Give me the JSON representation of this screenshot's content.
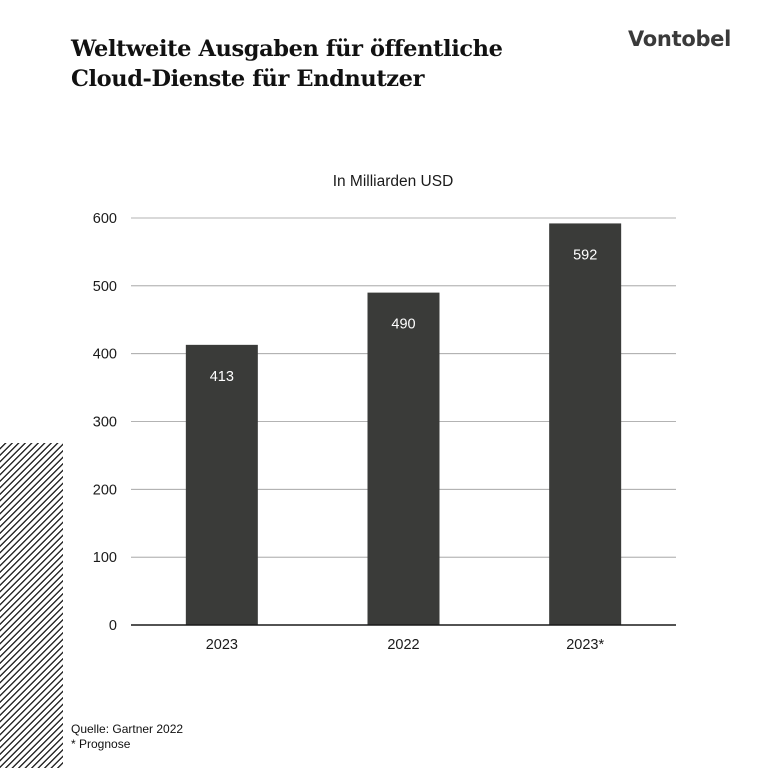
{
  "title": {
    "line1": "Weltweite Ausgaben für öffentliche",
    "line2": "Cloud-Dienste für Endnutzer"
  },
  "brand": {
    "logo_text": "Vontobel"
  },
  "chart_data": {
    "type": "bar",
    "subtitle": "In Milliarden USD",
    "categories": [
      "2023",
      "2022",
      "2023*"
    ],
    "values": [
      413,
      490,
      592
    ],
    "ylim": [
      0,
      600
    ],
    "yticks": [
      0,
      100,
      200,
      300,
      400,
      500,
      600
    ],
    "grid": true,
    "legend": "none",
    "bar_color": "#3a3b39",
    "label_color": "#ffffff"
  },
  "footer": {
    "source": "Quelle: Gartner 2022",
    "note": "* Prognose"
  }
}
